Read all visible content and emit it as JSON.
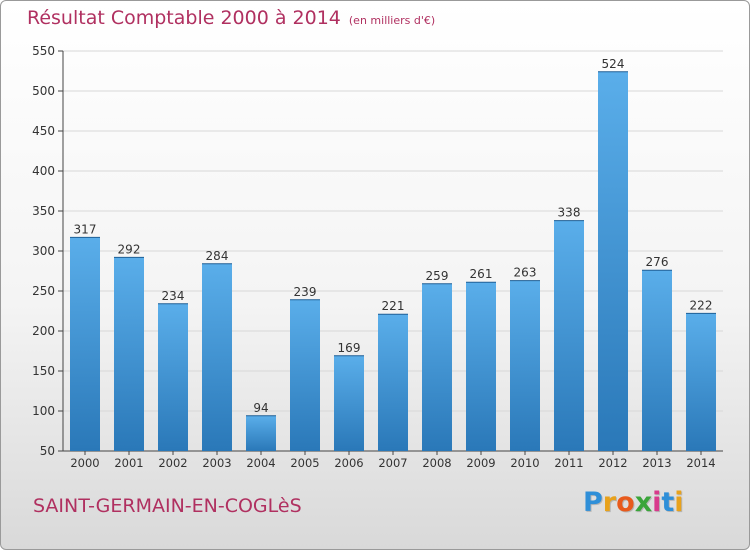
{
  "header": {
    "title": "Résultat Comptable 2000 à 2014",
    "unit": "(en milliers d'€)"
  },
  "footer": {
    "commune": "SAINT-GERMAIN-EN-COGLèS",
    "logo_letters": [
      "P",
      "r",
      "o",
      "x",
      "i",
      "t",
      "i"
    ],
    "logo_colors": [
      "#2f8fd8",
      "#e8a21c",
      "#e85a1c",
      "#3aa53a",
      "#d83a8c",
      "#2f8fd8",
      "#e8a21c"
    ]
  },
  "colors": {
    "bar_light": "#5aaeea",
    "bar_dark": "#2a78b8",
    "title": "#b03060",
    "grid": "#d8d8d8",
    "axis": "#444444"
  },
  "chart_data": {
    "type": "bar",
    "title": "Résultat Comptable 2000 à 2014",
    "subtitle": "(en milliers d'€)",
    "categories": [
      "2000",
      "2001",
      "2002",
      "2003",
      "2004",
      "2005",
      "2006",
      "2007",
      "2008",
      "2009",
      "2010",
      "2011",
      "2012",
      "2013",
      "2014"
    ],
    "values": [
      317,
      292,
      234,
      284,
      94,
      239,
      169,
      221,
      259,
      261,
      263,
      338,
      524,
      276,
      222
    ],
    "ylim": [
      50,
      550
    ],
    "yticks": [
      50,
      100,
      150,
      200,
      250,
      300,
      350,
      400,
      450,
      500,
      550
    ],
    "grid": true,
    "xlabel": "",
    "ylabel": ""
  }
}
